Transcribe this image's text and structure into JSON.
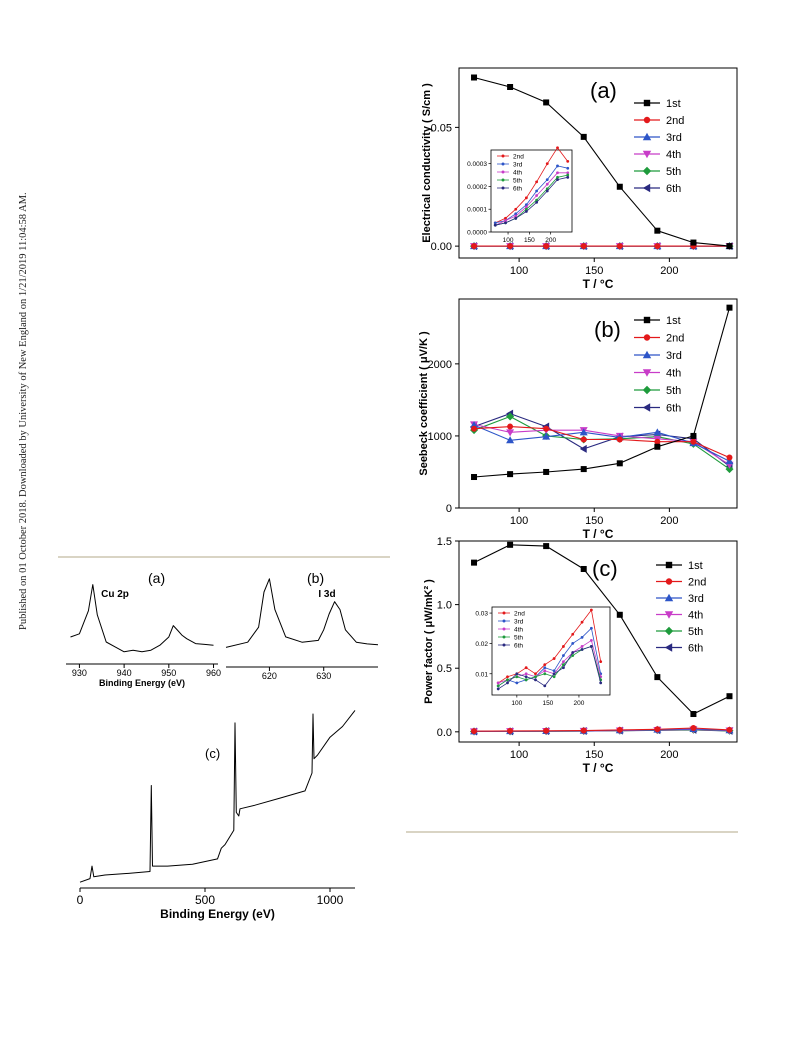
{
  "stamp": "Published on 01 October 2018. Downloaded by University of New England on 1/21/2019 11:04:58 AM.",
  "chart_data": [
    {
      "id": "a",
      "type": "line",
      "panel_label": "(a)",
      "xlabel": "T / °C",
      "ylabel": "Electrical conductivity ( S/cm )",
      "xlim": [
        60,
        245
      ],
      "ylim": [
        -0.005,
        0.075
      ],
      "xticks": [
        100,
        150,
        200
      ],
      "yticks": [
        0.0,
        0.05
      ],
      "ytick_labels": [
        "0.00",
        "0.05"
      ],
      "x": [
        70,
        94,
        118,
        143,
        167,
        192,
        216,
        240
      ],
      "series": [
        {
          "name": "1st",
          "color": "#000000",
          "marker": "square",
          "values": [
            0.071,
            0.067,
            0.0605,
            0.046,
            0.025,
            0.0065,
            0.0015,
            0.0
          ]
        },
        {
          "name": "2nd",
          "color": "#e3191b",
          "marker": "circle",
          "values": [
            0,
            0,
            0,
            0,
            0,
            0,
            0,
            0
          ]
        },
        {
          "name": "3rd",
          "color": "#2d55c8",
          "marker": "triangle-up",
          "values": [
            0,
            0,
            0,
            0,
            0,
            0,
            0,
            0
          ]
        },
        {
          "name": "4th",
          "color": "#c83cc8",
          "marker": "triangle-down",
          "values": [
            0,
            0,
            0,
            0,
            0,
            0,
            0,
            0
          ]
        },
        {
          "name": "5th",
          "color": "#1e9b3c",
          "marker": "diamond",
          "values": [
            0,
            0,
            0,
            0,
            0,
            0,
            0,
            0
          ]
        },
        {
          "name": "6th",
          "color": "#2a2a80",
          "marker": "triangle-left",
          "values": [
            0,
            0,
            0,
            0,
            0,
            0,
            0,
            0
          ]
        }
      ],
      "legend": "right",
      "inset": {
        "xlim": [
          60,
          250
        ],
        "ylim": [
          0,
          0.00036
        ],
        "xticks": [
          100,
          150,
          200
        ],
        "yticks": [
          0,
          0.0001,
          0.0002,
          0.0003
        ],
        "ytick_labels": [
          "0.0000",
          "0.0001",
          "0.0002",
          "0.0003"
        ],
        "x": [
          70,
          94,
          118,
          143,
          167,
          192,
          216,
          240
        ],
        "series": [
          {
            "name": "2nd",
            "color": "#e3191b",
            "values": [
              4e-05,
              6e-05,
              0.0001,
              0.00015,
              0.00022,
              0.0003,
              0.00037,
              0.00031
            ]
          },
          {
            "name": "3rd",
            "color": "#2d55c8",
            "values": [
              4e-05,
              5e-05,
              8e-05,
              0.00012,
              0.00018,
              0.00023,
              0.00029,
              0.00028
            ]
          },
          {
            "name": "4th",
            "color": "#c83cc8",
            "values": [
              3e-05,
              5e-05,
              7e-05,
              0.00011,
              0.00016,
              0.00021,
              0.00026,
              0.00026
            ]
          },
          {
            "name": "5th",
            "color": "#1e9b3c",
            "values": [
              3e-05,
              4e-05,
              6e-05,
              0.0001,
              0.00014,
              0.00019,
              0.00024,
              0.00025
            ]
          },
          {
            "name": "6th",
            "color": "#2a2a80",
            "values": [
              3e-05,
              4e-05,
              6e-05,
              9e-05,
              0.00013,
              0.00018,
              0.00023,
              0.00024
            ]
          }
        ]
      }
    },
    {
      "id": "b",
      "type": "line",
      "panel_label": "(b)",
      "xlabel": "T / °C",
      "ylabel": "Seebeck coefficient ( μV/K )",
      "xlim": [
        60,
        245
      ],
      "ylim": [
        0,
        2900
      ],
      "xticks": [
        100,
        150,
        200
      ],
      "yticks": [
        0,
        1000,
        2000
      ],
      "ytick_labels": [
        "0",
        "1000",
        "2000"
      ],
      "x": [
        70,
        94,
        118,
        143,
        167,
        192,
        216,
        240
      ],
      "series": [
        {
          "name": "1st",
          "color": "#000000",
          "marker": "square",
          "values": [
            430,
            470,
            500,
            540,
            620,
            850,
            1000,
            2780
          ]
        },
        {
          "name": "2nd",
          "color": "#e3191b",
          "marker": "circle",
          "values": [
            1100,
            1130,
            1100,
            950,
            950,
            920,
            920,
            700
          ]
        },
        {
          "name": "3rd",
          "color": "#2d55c8",
          "marker": "triangle-up",
          "values": [
            1150,
            940,
            990,
            1050,
            980,
            1050,
            900,
            650
          ]
        },
        {
          "name": "4th",
          "color": "#c83cc8",
          "marker": "triangle-down",
          "values": [
            1160,
            1050,
            1080,
            1080,
            1000,
            960,
            920,
            600
          ]
        },
        {
          "name": "5th",
          "color": "#1e9b3c",
          "marker": "diamond",
          "values": [
            1080,
            1270,
            1000,
            950,
            960,
            990,
            890,
            540
          ]
        },
        {
          "name": "6th",
          "color": "#2a2a80",
          "marker": "triangle-left",
          "values": [
            1130,
            1310,
            1130,
            820,
            990,
            1020,
            960,
            580
          ]
        }
      ],
      "legend": "right"
    },
    {
      "id": "c",
      "type": "line",
      "panel_label": "(c)",
      "xlabel": "T / °C",
      "ylabel": "Power factor ( μW/mK² )",
      "xlim": [
        60,
        245
      ],
      "ylim": [
        -0.08,
        1.5
      ],
      "xticks": [
        100,
        150,
        200
      ],
      "yticks": [
        0.0,
        0.5,
        1.0,
        1.5
      ],
      "ytick_labels": [
        "0.0",
        "0.5",
        "1.0",
        "1.5"
      ],
      "x": [
        70,
        94,
        118,
        143,
        167,
        192,
        216,
        240
      ],
      "series": [
        {
          "name": "1st",
          "color": "#000000",
          "marker": "square",
          "values": [
            1.33,
            1.47,
            1.46,
            1.28,
            0.92,
            0.43,
            0.14,
            0.28
          ]
        },
        {
          "name": "2nd",
          "color": "#e3191b",
          "marker": "circle",
          "values": [
            0.005,
            0.007,
            0.008,
            0.01,
            0.015,
            0.02,
            0.03,
            0.015
          ]
        },
        {
          "name": "3rd",
          "color": "#2d55c8",
          "marker": "triangle-up",
          "values": [
            0.004,
            0.005,
            0.006,
            0.008,
            0.012,
            0.017,
            0.022,
            0.012
          ]
        },
        {
          "name": "4th",
          "color": "#c83cc8",
          "marker": "triangle-down",
          "values": [
            0.004,
            0.005,
            0.006,
            0.007,
            0.01,
            0.014,
            0.018,
            0.01
          ]
        },
        {
          "name": "5th",
          "color": "#1e9b3c",
          "marker": "diamond",
          "values": [
            0.003,
            0.004,
            0.005,
            0.006,
            0.009,
            0.013,
            0.016,
            0.008
          ]
        },
        {
          "name": "6th",
          "color": "#2a2a80",
          "marker": "triangle-left",
          "values": [
            0.003,
            0.004,
            0.005,
            0.006,
            0.009,
            0.012,
            0.015,
            0.007
          ]
        }
      ],
      "legend": "right",
      "inset": {
        "xlim": [
          60,
          250
        ],
        "ylim": [
          0.003,
          0.032
        ],
        "xticks": [
          100,
          150,
          200
        ],
        "yticks": [
          0.01,
          0.02,
          0.03
        ],
        "ytick_labels": [
          "0.01",
          "0.02",
          "0.03"
        ],
        "x": [
          70,
          85,
          100,
          115,
          130,
          145,
          160,
          175,
          190,
          205,
          220,
          235
        ],
        "series": [
          {
            "name": "2nd",
            "color": "#e3191b",
            "values": [
              0.007,
              0.009,
              0.01,
              0.012,
              0.01,
              0.013,
              0.015,
              0.019,
              0.023,
              0.027,
              0.031,
              0.014
            ]
          },
          {
            "name": "3rd",
            "color": "#2d55c8",
            "values": [
              0.006,
              0.008,
              0.007,
              0.008,
              0.009,
              0.012,
              0.011,
              0.016,
              0.02,
              0.022,
              0.025,
              0.01
            ]
          },
          {
            "name": "4th",
            "color": "#c83cc8",
            "values": [
              0.007,
              0.008,
              0.009,
              0.01,
              0.009,
              0.011,
              0.01,
              0.014,
              0.017,
              0.019,
              0.021,
              0.009
            ]
          },
          {
            "name": "5th",
            "color": "#1e9b3c",
            "values": [
              0.006,
              0.008,
              0.009,
              0.008,
              0.009,
              0.01,
              0.009,
              0.013,
              0.016,
              0.018,
              0.019,
              0.008
            ]
          },
          {
            "name": "6th",
            "color": "#2a2a80",
            "values": [
              0.005,
              0.007,
              0.01,
              0.009,
              0.008,
              0.006,
              0.01,
              0.012,
              0.017,
              0.018,
              0.019,
              0.007
            ]
          }
        ]
      }
    },
    {
      "id": "xps_a",
      "type": "line",
      "panel_label": "(a)",
      "annotation": "Cu 2p",
      "xlabel": "Binding Energy (eV)",
      "xlim": [
        927,
        961
      ],
      "xticks": [
        930,
        940,
        950,
        960
      ],
      "ylim": [
        0,
        1
      ],
      "x": [
        928,
        930,
        932,
        933,
        934,
        936,
        938,
        940,
        942,
        944,
        946,
        948,
        950,
        951,
        952,
        953,
        954,
        956,
        958,
        960
      ],
      "series": [
        {
          "name": "",
          "color": "#000000",
          "values": [
            0.28,
            0.32,
            0.6,
            0.92,
            0.55,
            0.22,
            0.16,
            0.1,
            0.12,
            0.1,
            0.12,
            0.18,
            0.28,
            0.42,
            0.36,
            0.3,
            0.26,
            0.2,
            0.19,
            0.18
          ]
        }
      ]
    },
    {
      "id": "xps_b",
      "type": "line",
      "panel_label": "(b)",
      "annotation": "I 3d",
      "xlabel": "",
      "xlim": [
        612,
        640
      ],
      "xticks": [
        620,
        630
      ],
      "ylim": [
        0,
        1
      ],
      "x": [
        612,
        616,
        618,
        619,
        620,
        621,
        623,
        626,
        629,
        630,
        631,
        632,
        633,
        634,
        636,
        638,
        640
      ],
      "series": [
        {
          "name": "",
          "color": "#000000",
          "values": [
            0.12,
            0.18,
            0.35,
            0.75,
            0.9,
            0.55,
            0.24,
            0.18,
            0.2,
            0.32,
            0.5,
            0.64,
            0.55,
            0.32,
            0.18,
            0.16,
            0.15
          ]
        }
      ]
    },
    {
      "id": "xps_c",
      "type": "line",
      "panel_label": "(c)",
      "xlabel": "Binding Energy (eV)",
      "xlim": [
        0,
        1100
      ],
      "xticks": [
        0,
        500,
        1000
      ],
      "ylim": [
        0,
        1
      ],
      "x": [
        0,
        40,
        48,
        55,
        100,
        200,
        280,
        285,
        290,
        350,
        450,
        550,
        565,
        580,
        615,
        620,
        625,
        635,
        640,
        700,
        800,
        900,
        928,
        932,
        936,
        950,
        1000,
        1050,
        1100
      ],
      "series": [
        {
          "name": "",
          "color": "#000000",
          "values": [
            0.01,
            0.03,
            0.1,
            0.04,
            0.05,
            0.06,
            0.07,
            0.55,
            0.1,
            0.1,
            0.11,
            0.14,
            0.2,
            0.22,
            0.3,
            0.9,
            0.4,
            0.38,
            0.42,
            0.44,
            0.48,
            0.52,
            0.62,
            0.95,
            0.7,
            0.72,
            0.82,
            0.88,
            0.97
          ]
        }
      ]
    }
  ]
}
